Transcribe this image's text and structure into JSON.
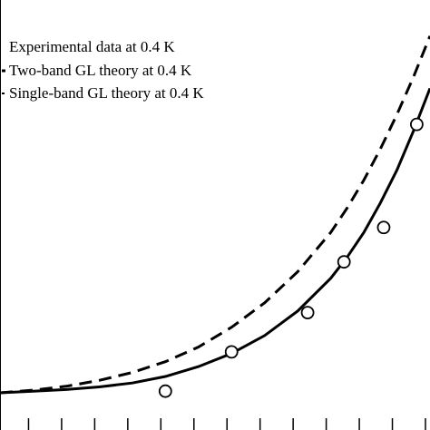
{
  "chart_data": {
    "type": "line",
    "legend_position": "top-left",
    "grid": false,
    "series": [
      {
        "name": "Experimental data at 0.4 K",
        "style": "open-circle",
        "x": [
          5.0,
          7.0,
          9.3,
          10.4,
          11.6,
          12.6
        ],
        "y": [
          0.05,
          1.25,
          2.45,
          4.0,
          5.05,
          8.2
        ]
      },
      {
        "name": "Two-band GL theory at 0.4 K",
        "style": "solid",
        "x": [
          0,
          1,
          2,
          3,
          4,
          5,
          6,
          7,
          8,
          9,
          10,
          10.5,
          11,
          11.5,
          12,
          12.5,
          13
        ],
        "y": [
          0.0,
          0.05,
          0.1,
          0.18,
          0.3,
          0.5,
          0.8,
          1.2,
          1.75,
          2.5,
          3.5,
          4.15,
          4.9,
          5.8,
          6.8,
          8.0,
          9.3
        ]
      },
      {
        "name": "Single-band GL theory at 0.4 K",
        "style": "dashed",
        "x": [
          0,
          1,
          2,
          3,
          4,
          5,
          6,
          7,
          8,
          9,
          10,
          10.5,
          11,
          11.5,
          12,
          12.5,
          13
        ],
        "y": [
          0.0,
          0.08,
          0.2,
          0.38,
          0.62,
          0.95,
          1.4,
          2.0,
          2.75,
          3.7,
          4.9,
          5.65,
          6.5,
          7.45,
          8.5,
          9.65,
          10.9
        ]
      }
    ],
    "xlim": [
      0,
      13
    ],
    "ylim": [
      0,
      12
    ]
  },
  "colors": {
    "line": "#000000",
    "background": "#ffffff"
  }
}
